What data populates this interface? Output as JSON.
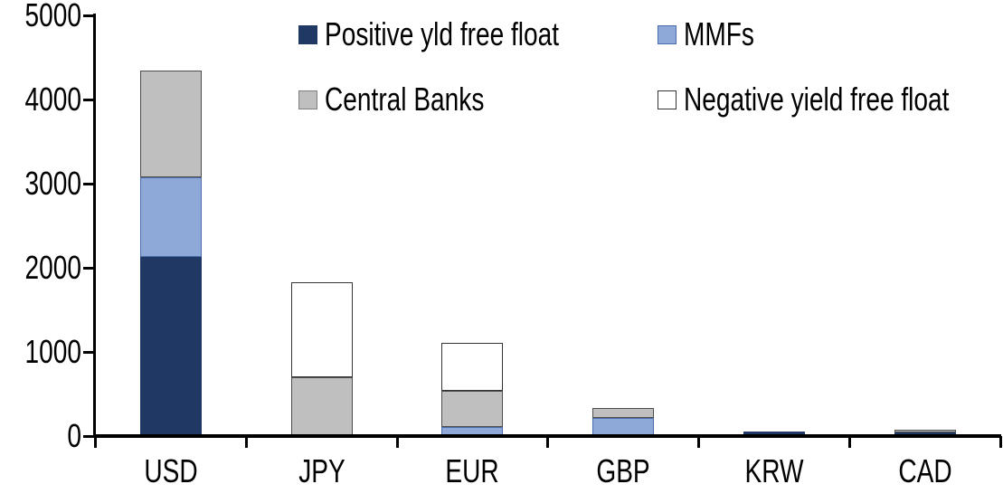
{
  "chart_data": {
    "type": "bar",
    "stacked": true,
    "title": "",
    "xlabel": "",
    "ylabel": "",
    "categories": [
      "USD",
      "JPY",
      "EUR",
      "GBP",
      "KRW",
      "CAD"
    ],
    "series": [
      {
        "name": "Positive yld free float",
        "color": "#1F3864",
        "border": "#1F3864",
        "values": [
          2130,
          0,
          0,
          0,
          50,
          40
        ]
      },
      {
        "name": "MMFs",
        "color": "#8EA9D8",
        "border": "#4A6EA9",
        "values": [
          950,
          0,
          110,
          215,
          0,
          0
        ]
      },
      {
        "name": "Central Banks",
        "color": "#BFBFBF",
        "border": "#4D4D4D",
        "values": [
          1260,
          700,
          430,
          115,
          0,
          30
        ]
      },
      {
        "name": "Negative yield free float",
        "color": "#FFFFFF",
        "border": "#333333",
        "values": [
          0,
          1130,
          570,
          0,
          0,
          0
        ]
      }
    ],
    "totals": [
      4340,
      1830,
      1110,
      330,
      50,
      70
    ],
    "ylim": [
      0,
      5000
    ],
    "yticks": [
      0,
      1000,
      2000,
      3000,
      4000,
      5000
    ],
    "grid": false,
    "legend_position": "top",
    "legend_rows": [
      [
        "Positive yld free float",
        "MMFs"
      ],
      [
        "Central Banks",
        "Negative yield free float"
      ]
    ],
    "axis_color": "#000000",
    "background_color": "#FFFFFF"
  }
}
